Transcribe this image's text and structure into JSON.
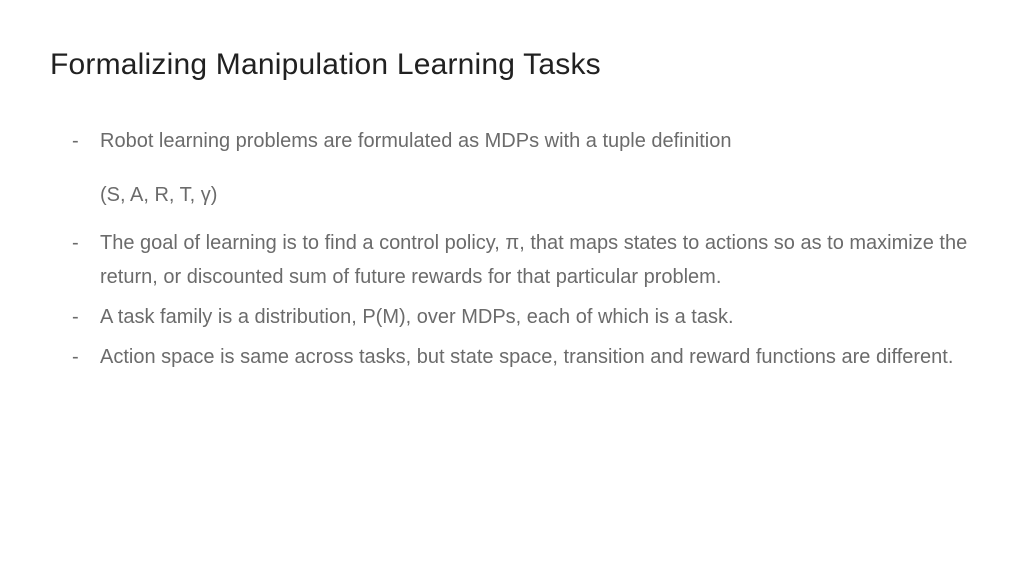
{
  "title": "Formalizing Manipulation Learning Tasks",
  "bullets": [
    {
      "text": "Robot learning problems are formulated as MDPs with a tuple definition",
      "sub": "(S, A, R, T, γ)"
    },
    {
      "text": "The goal of learning is to find a control policy, π,  that maps states to actions so as to maximize the return, or discounted sum of future rewards for that particular problem."
    },
    {
      "text": "A task family is a distribution, P(M), over MDPs, each of which is a task."
    },
    {
      "text": "Action space is same across tasks, but state space, transition and reward functions are different."
    }
  ],
  "colors": {
    "title": "#212121",
    "body": "#6b6b6b",
    "background": "#ffffff"
  },
  "typography": {
    "title_fontsize": 30,
    "body_fontsize": 20,
    "line_height": 1.7,
    "font_family": "Arial"
  }
}
